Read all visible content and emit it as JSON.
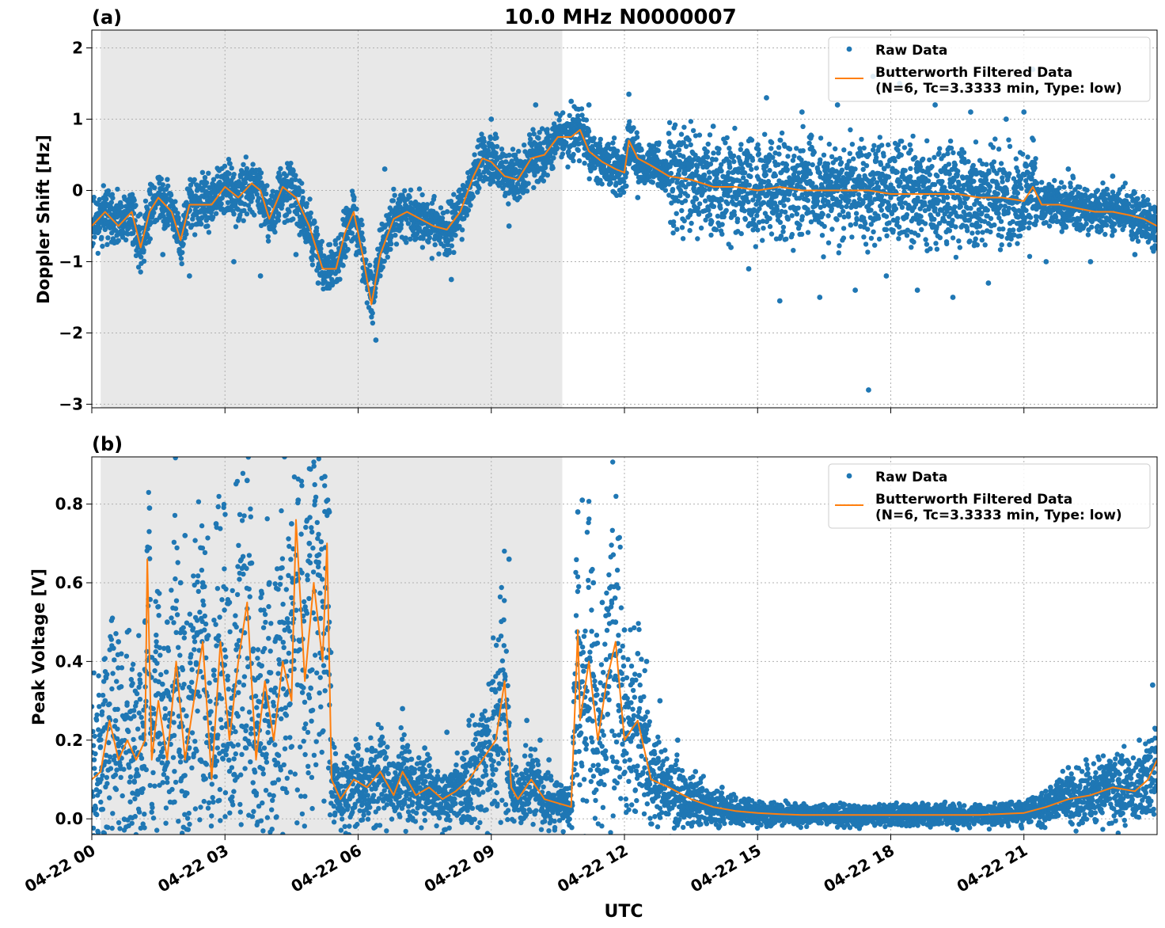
{
  "figure": {
    "title": "10.0 MHz N0000007",
    "xlabel": "UTC",
    "x_tick_labels": [
      "04-22 00",
      "04-22 03",
      "04-22 06",
      "04-22 09",
      "04-22 12",
      "04-22 15",
      "04-22 18",
      "04-22 21"
    ],
    "colors": {
      "raw": "#1f77b4",
      "filtered": "#ff7f0e",
      "night_shade": "#e8e8e8",
      "grid": "#b0b0b0"
    }
  },
  "chart_data": [
    {
      "type": "scatter",
      "panel_label": "(a)",
      "ylabel": "Doppler Shift [Hz]",
      "x_unit": "hours UTC on 04-22",
      "xlim": [
        0,
        24
      ],
      "ylim": [
        -3.05,
        2.25
      ],
      "y_ticks": [
        2,
        1,
        0,
        -1,
        -2,
        -3
      ],
      "y_tick_labels": [
        "2",
        "1",
        "0",
        "−1",
        "−2",
        "−3"
      ],
      "grid": true,
      "shaded_x_range": [
        0.2,
        10.6
      ],
      "legend": {
        "position": "upper right",
        "entries": [
          "Raw Data",
          "Butterworth Filtered Data",
          "(N=6, Tc=3.3333 min, Type: low)"
        ]
      },
      "series": [
        {
          "name": "Butterworth Filtered Data",
          "kind": "line",
          "x": [
            0.0,
            0.3,
            0.6,
            0.9,
            1.1,
            1.3,
            1.5,
            1.8,
            2.0,
            2.2,
            2.4,
            2.7,
            3.0,
            3.3,
            3.6,
            3.8,
            4.0,
            4.3,
            4.6,
            4.9,
            5.2,
            5.5,
            5.7,
            5.9,
            6.1,
            6.3,
            6.5,
            6.8,
            7.1,
            7.4,
            7.7,
            8.0,
            8.3,
            8.6,
            8.8,
            9.0,
            9.3,
            9.6,
            9.9,
            10.2,
            10.5,
            10.8,
            11.0,
            11.2,
            11.5,
            11.8,
            12.0,
            12.1,
            12.3,
            12.6,
            13.0,
            13.5,
            14.0,
            14.5,
            15.0,
            15.5,
            16.0,
            16.5,
            17.0,
            17.5,
            18.0,
            18.5,
            19.0,
            19.5,
            20.0,
            20.5,
            21.0,
            21.2,
            21.4,
            21.8,
            22.2,
            22.6,
            23.0,
            23.4,
            23.7,
            24.0
          ],
          "y": [
            -0.5,
            -0.3,
            -0.5,
            -0.3,
            -0.8,
            -0.3,
            -0.1,
            -0.3,
            -0.7,
            -0.2,
            -0.2,
            -0.2,
            0.05,
            -0.1,
            0.1,
            0.0,
            -0.4,
            0.05,
            -0.1,
            -0.5,
            -1.1,
            -1.1,
            -0.6,
            -0.3,
            -0.9,
            -1.6,
            -0.9,
            -0.4,
            -0.3,
            -0.4,
            -0.5,
            -0.55,
            -0.3,
            0.2,
            0.45,
            0.4,
            0.2,
            0.15,
            0.45,
            0.5,
            0.75,
            0.75,
            0.85,
            0.55,
            0.4,
            0.3,
            0.25,
            0.7,
            0.45,
            0.35,
            0.2,
            0.15,
            0.05,
            0.05,
            0.0,
            0.05,
            0.0,
            0.0,
            0.0,
            0.0,
            -0.05,
            -0.05,
            -0.05,
            -0.05,
            -0.1,
            -0.1,
            -0.15,
            0.05,
            -0.2,
            -0.2,
            -0.25,
            -0.3,
            -0.3,
            -0.35,
            -0.4,
            -0.5
          ]
        },
        {
          "name": "Raw Data",
          "kind": "points",
          "x": [
            1.6,
            2.2,
            3.2,
            3.8,
            4.6,
            5.1,
            6.0,
            6.4,
            6.6,
            8.1,
            9.0,
            9.4,
            10.0,
            10.8,
            11.2,
            12.1,
            12.3,
            13.0,
            13.5,
            14.0,
            14.4,
            14.8,
            15.2,
            15.5,
            16.0,
            16.4,
            16.8,
            17.2,
            17.5,
            17.6,
            17.9,
            18.2,
            18.6,
            19.0,
            19.4,
            19.8,
            20.2,
            20.6,
            21.0,
            21.2,
            21.5,
            22.0,
            22.5,
            23.0,
            23.5
          ],
          "y": [
            -0.9,
            -1.2,
            -1.0,
            -1.2,
            -0.9,
            -1.3,
            -0.5,
            -2.1,
            0.3,
            -1.25,
            1.0,
            -0.5,
            1.2,
            1.25,
            1.2,
            1.35,
            -0.1,
            0.8,
            -0.3,
            0.9,
            -0.8,
            -1.1,
            1.3,
            -1.55,
            1.1,
            -1.5,
            1.2,
            -1.4,
            -2.8,
            1.6,
            -1.2,
            1.5,
            -1.4,
            1.2,
            -1.5,
            1.1,
            -1.3,
            1.0,
            1.1,
            1.7,
            -1.0,
            0.3,
            -1.0,
            0.2,
            -0.9
          ]
        }
      ]
    },
    {
      "type": "scatter",
      "panel_label": "(b)",
      "ylabel": "Peak Voltage [V]",
      "x_unit": "hours UTC on 04-22",
      "xlim": [
        0,
        24
      ],
      "ylim": [
        -0.04,
        0.92
      ],
      "y_ticks": [
        0.0,
        0.2,
        0.4,
        0.6,
        0.8
      ],
      "y_tick_labels": [
        "0.0",
        "0.2",
        "0.4",
        "0.6",
        "0.8"
      ],
      "grid": true,
      "shaded_x_range": [
        0.2,
        10.6
      ],
      "legend": {
        "position": "upper right",
        "entries": [
          "Raw Data",
          "Butterworth Filtered Data",
          "(N=6, Tc=3.3333 min, Type: low)"
        ]
      },
      "series": [
        {
          "name": "Butterworth Filtered Data",
          "kind": "line",
          "x": [
            0.0,
            0.2,
            0.4,
            0.6,
            0.8,
            1.0,
            1.2,
            1.25,
            1.35,
            1.5,
            1.7,
            1.9,
            2.1,
            2.3,
            2.5,
            2.7,
            2.9,
            3.1,
            3.3,
            3.5,
            3.7,
            3.9,
            4.1,
            4.3,
            4.5,
            4.6,
            4.8,
            5.0,
            5.2,
            5.3,
            5.4,
            5.6,
            5.9,
            6.2,
            6.5,
            6.8,
            7.0,
            7.3,
            7.6,
            7.9,
            8.2,
            8.5,
            8.8,
            9.1,
            9.3,
            9.45,
            9.6,
            9.9,
            10.2,
            10.5,
            10.8,
            10.95,
            11.0,
            11.2,
            11.4,
            11.6,
            11.8,
            12.0,
            12.3,
            12.6,
            13.0,
            13.5,
            14.0,
            14.5,
            15.0,
            15.5,
            16.0,
            17.0,
            18.0,
            19.0,
            20.0,
            21.0,
            21.5,
            22.0,
            22.5,
            23.0,
            23.5,
            23.8,
            24.0
          ],
          "y": [
            0.1,
            0.12,
            0.25,
            0.15,
            0.2,
            0.15,
            0.2,
            0.66,
            0.15,
            0.3,
            0.15,
            0.4,
            0.15,
            0.3,
            0.45,
            0.1,
            0.45,
            0.2,
            0.4,
            0.55,
            0.15,
            0.35,
            0.2,
            0.4,
            0.3,
            0.76,
            0.35,
            0.6,
            0.4,
            0.7,
            0.1,
            0.05,
            0.1,
            0.08,
            0.12,
            0.06,
            0.12,
            0.06,
            0.08,
            0.05,
            0.07,
            0.1,
            0.15,
            0.2,
            0.35,
            0.08,
            0.05,
            0.1,
            0.05,
            0.04,
            0.03,
            0.48,
            0.25,
            0.4,
            0.2,
            0.35,
            0.45,
            0.2,
            0.25,
            0.1,
            0.08,
            0.05,
            0.03,
            0.02,
            0.015,
            0.012,
            0.01,
            0.01,
            0.01,
            0.01,
            0.01,
            0.015,
            0.03,
            0.05,
            0.06,
            0.08,
            0.07,
            0.1,
            0.15
          ]
        },
        {
          "name": "Raw Data",
          "kind": "points",
          "x": [
            0.3,
            0.6,
            1.2,
            1.3,
            1.7,
            2.0,
            2.1,
            2.5,
            2.8,
            3.1,
            3.5,
            3.6,
            4.0,
            4.5,
            4.65,
            4.9,
            5.1,
            5.25,
            5.35,
            6.0,
            6.5,
            7.0,
            7.5,
            8.0,
            8.5,
            8.7,
            9.2,
            9.4,
            9.8,
            10.1,
            10.3,
            10.95,
            11.05,
            11.3,
            11.5,
            11.8,
            12.0,
            12.3,
            12.5,
            12.8,
            13.2,
            13.6,
            14.2,
            14.8,
            15.5,
            16.5,
            17.5,
            18.5,
            19.5,
            20.5,
            21.2,
            21.6,
            22.0,
            22.4,
            22.8,
            23.2,
            23.6,
            23.9
          ],
          "y": [
            0.3,
            0.45,
            0.5,
            0.79,
            0.5,
            0.6,
            0.72,
            0.6,
            0.75,
            0.55,
            0.86,
            0.65,
            0.6,
            0.75,
            0.81,
            0.7,
            0.65,
            0.87,
            0.78,
            0.18,
            0.2,
            0.28,
            0.18,
            0.22,
            0.25,
            0.18,
            0.3,
            0.66,
            0.25,
            0.2,
            0.15,
            0.78,
            0.81,
            0.6,
            0.55,
            0.5,
            0.48,
            0.42,
            0.4,
            0.3,
            0.2,
            0.12,
            0.08,
            0.05,
            0.03,
            0.02,
            0.02,
            0.02,
            0.02,
            0.025,
            0.04,
            0.08,
            0.13,
            0.15,
            0.12,
            0.15,
            0.2,
            0.34
          ]
        }
      ]
    }
  ]
}
